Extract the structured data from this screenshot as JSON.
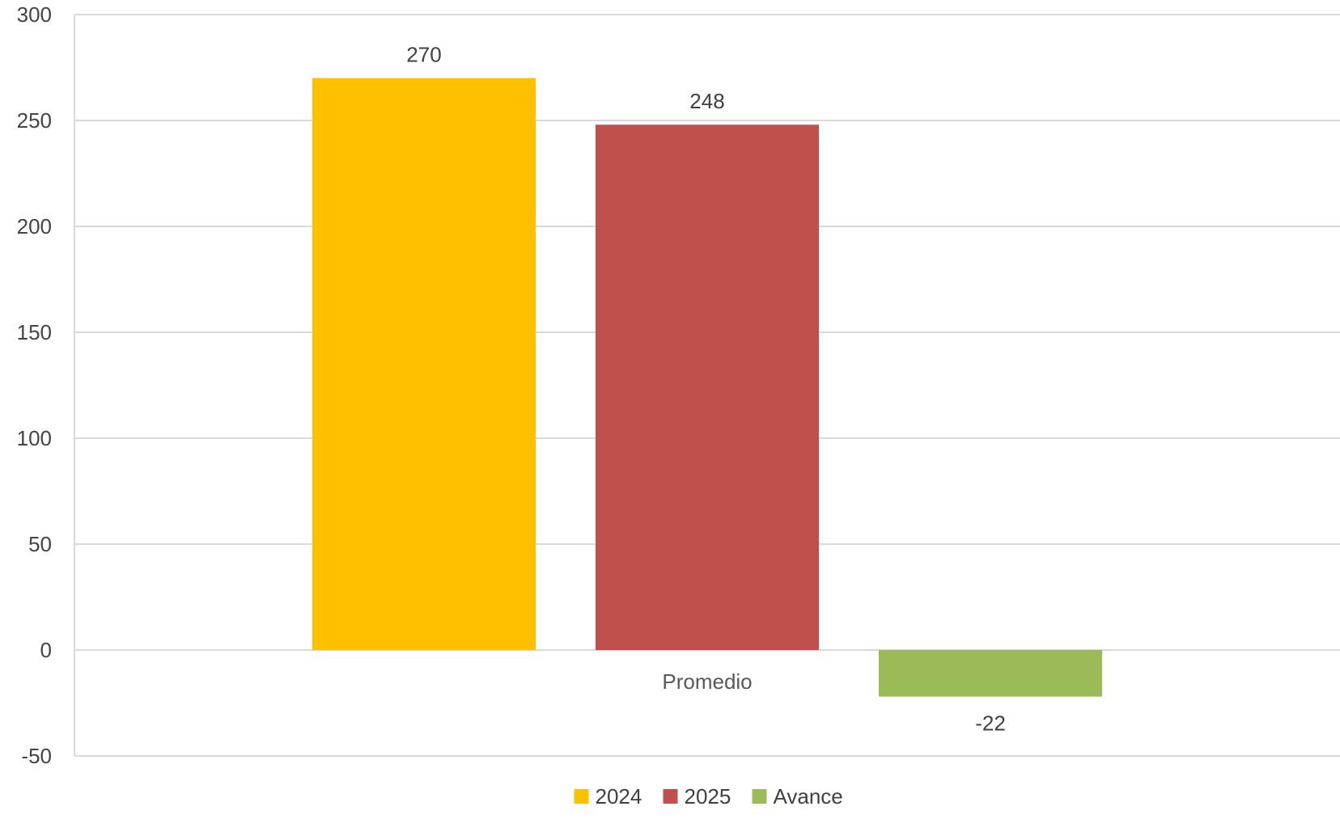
{
  "chart_data": {
    "type": "bar",
    "categories": [
      "Promedio"
    ],
    "series": [
      {
        "name": "2024",
        "values": [
          270
        ],
        "color": "#FFC000"
      },
      {
        "name": "2025",
        "values": [
          248
        ],
        "color": "#C0504D"
      },
      {
        "name": "Avance",
        "values": [
          -22
        ],
        "color": "#9BBB59"
      }
    ],
    "ylim": [
      -50,
      300
    ],
    "yticks": [
      -50,
      0,
      50,
      100,
      150,
      200,
      250,
      300
    ],
    "grid": true,
    "legend_position": "bottom"
  }
}
